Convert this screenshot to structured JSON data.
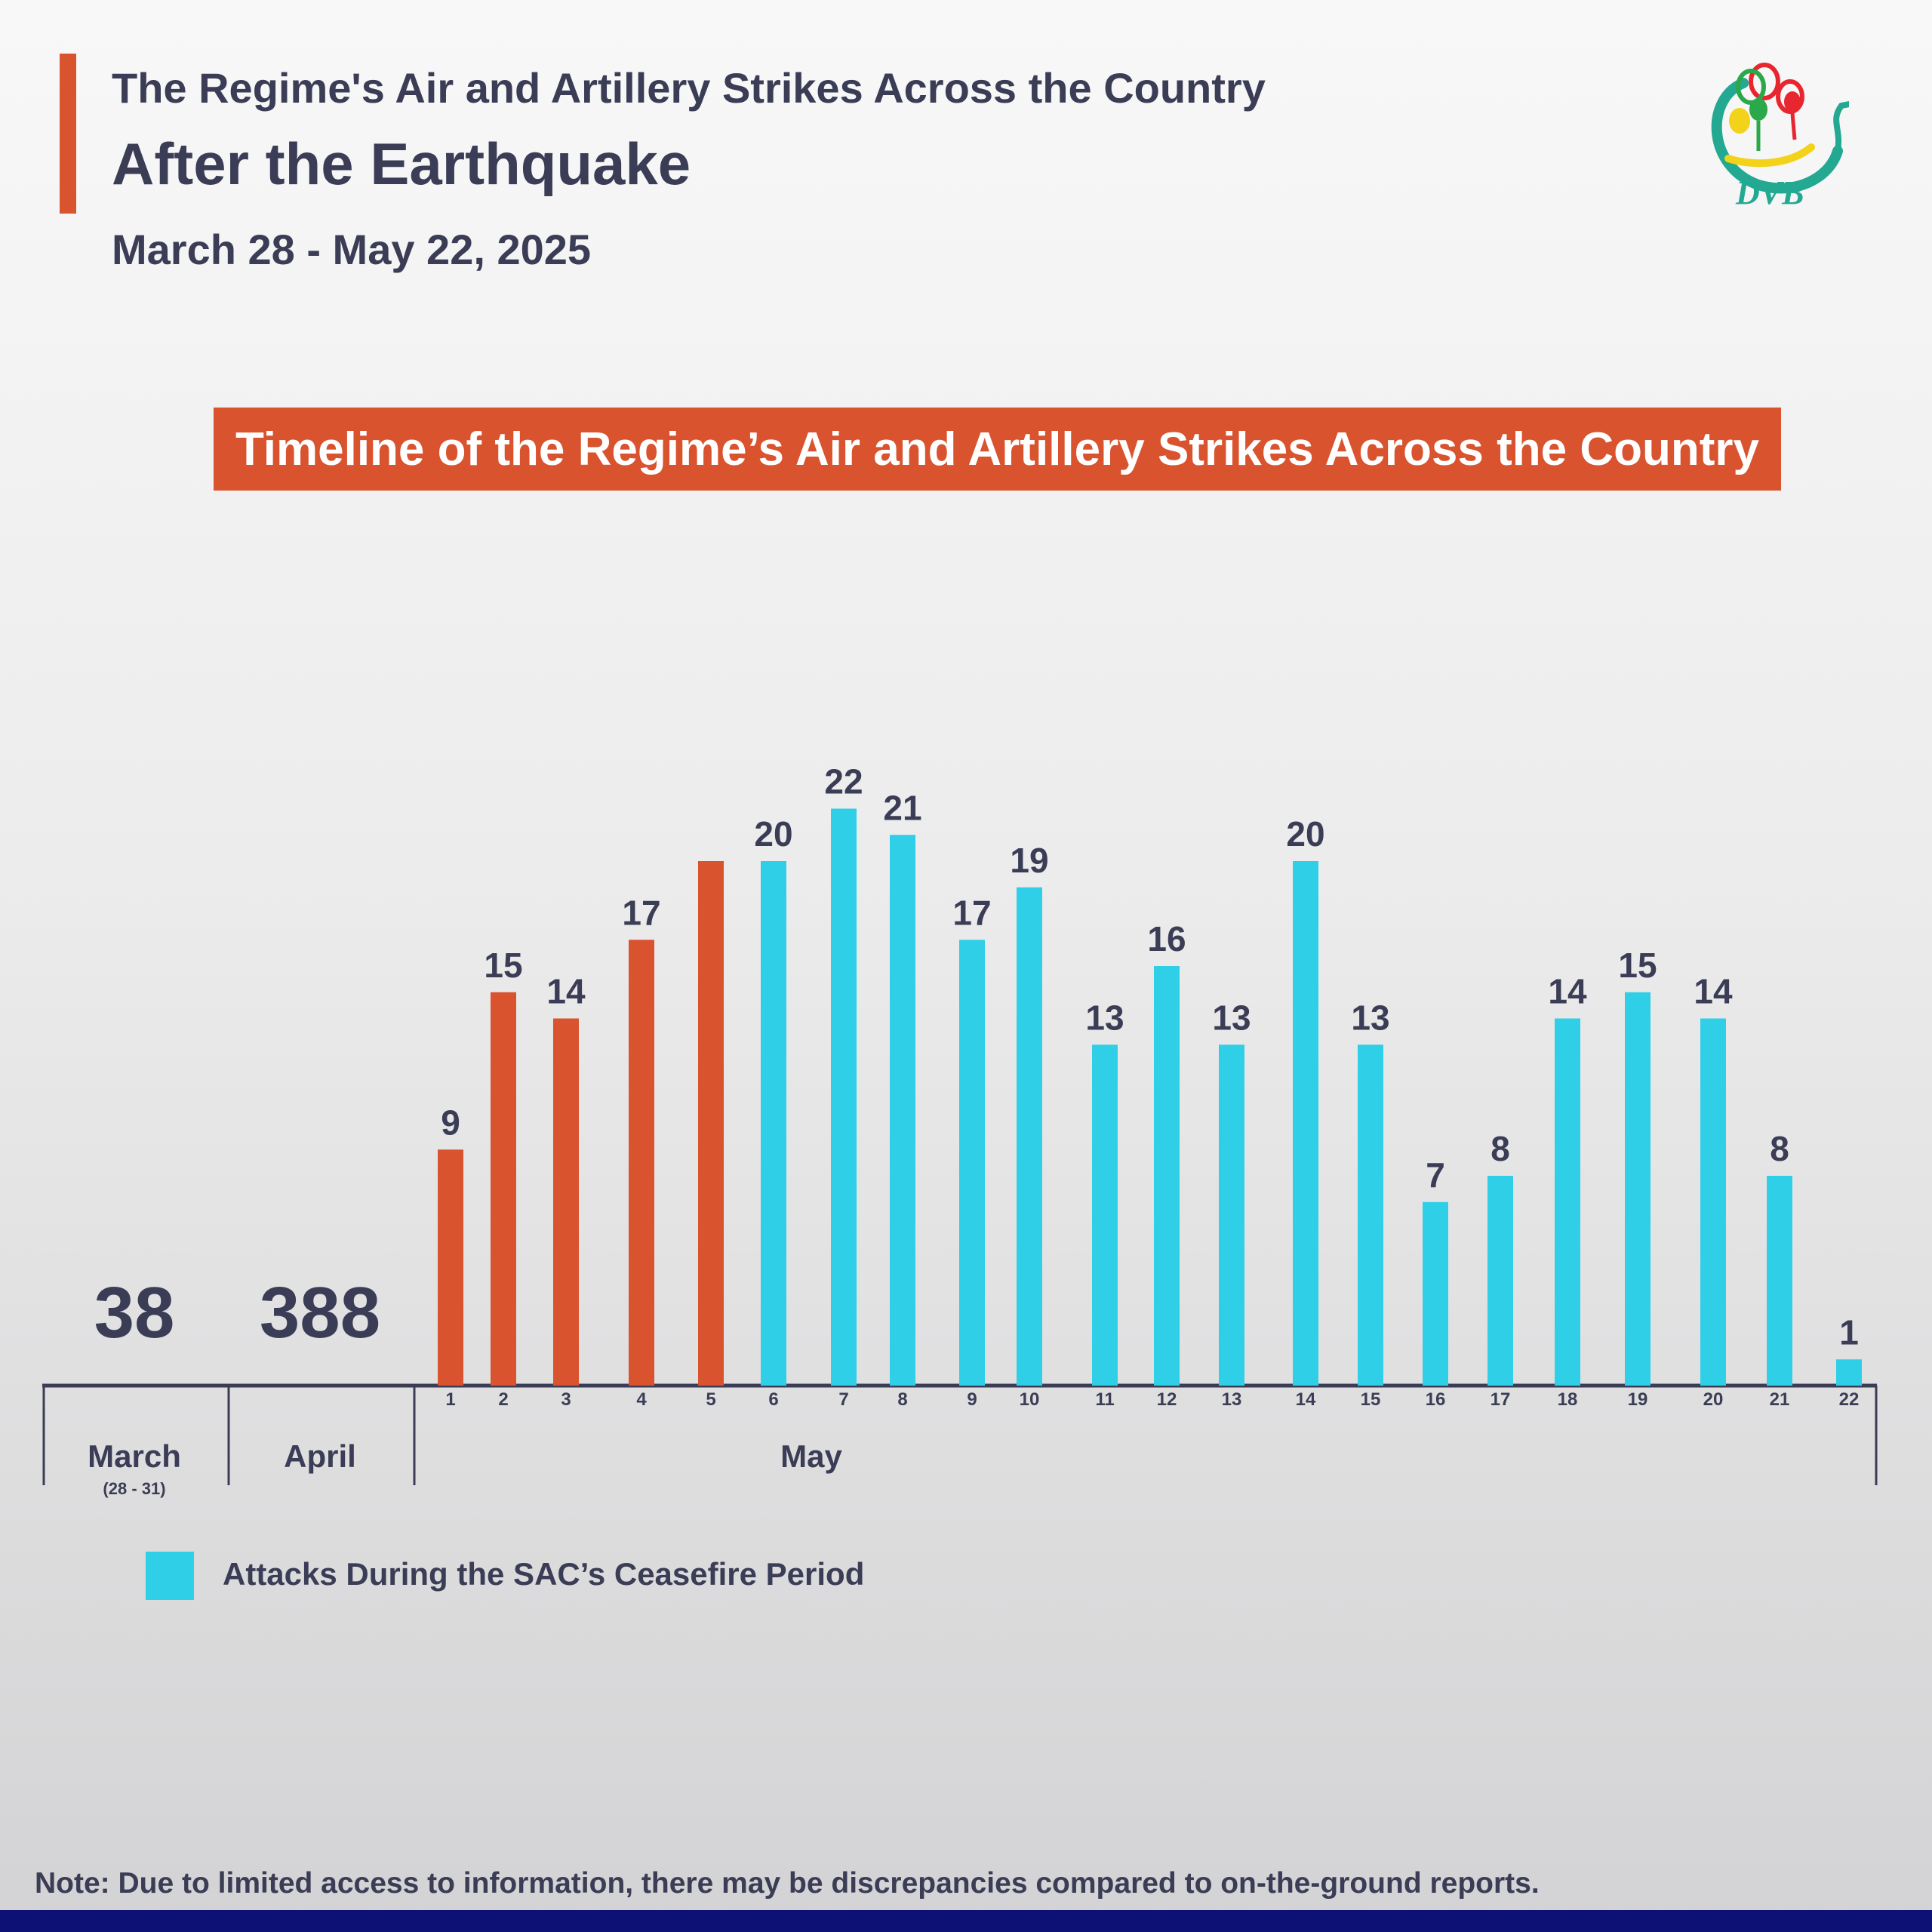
{
  "header": {
    "title_line1": "The Regime's Air and Artillery Strikes Across the Country",
    "title_line2": "After the Earthquake",
    "date_range": "March 28 - May 22, 2025",
    "logo_text": "DVB"
  },
  "banner": "Timeline of the Regime’s Air and Artillery Strikes Across the Country",
  "legend": {
    "label": "Attacks During the SAC’s Ceasefire Period",
    "color": "#30cfe8"
  },
  "note": "Note: Due to limited access to information, there may be discrepancies compared to on-the-ground reports.",
  "colors": {
    "accent": "#d9532f",
    "ceasefire": "#30cfe8",
    "text": "#3a3d55",
    "footer": "#0d1175"
  },
  "chart_data": {
    "type": "bar",
    "title": "Timeline of the Regime’s Air and Artillery Strikes Across the Country",
    "month_totals": [
      {
        "month": "March",
        "sub": "(28 - 31)",
        "value": 38
      },
      {
        "month": "April",
        "sub": "",
        "value": 388
      }
    ],
    "group_label": "May",
    "categories": [
      "1",
      "2",
      "3",
      "4",
      "5",
      "6",
      "7",
      "8",
      "9",
      "10",
      "11",
      "12",
      "13",
      "14",
      "15",
      "16",
      "17",
      "18",
      "19",
      "20",
      "21",
      "22"
    ],
    "values": [
      9,
      15,
      14,
      17,
      20,
      20,
      22,
      21,
      17,
      19,
      13,
      16,
      13,
      20,
      13,
      7,
      8,
      14,
      15,
      14,
      8,
      1
    ],
    "data_labels": [
      "9",
      "15",
      "14",
      "17",
      "",
      "20",
      "22",
      "21",
      "17",
      "19",
      "13",
      "16",
      "13",
      "20",
      "13",
      "7",
      "8",
      "14",
      "15",
      "14",
      "8",
      "1"
    ],
    "ceasefire": [
      false,
      false,
      false,
      false,
      false,
      true,
      true,
      true,
      true,
      true,
      true,
      true,
      true,
      true,
      true,
      true,
      true,
      true,
      true,
      true,
      true,
      true
    ],
    "ylim": [
      0,
      24
    ]
  }
}
